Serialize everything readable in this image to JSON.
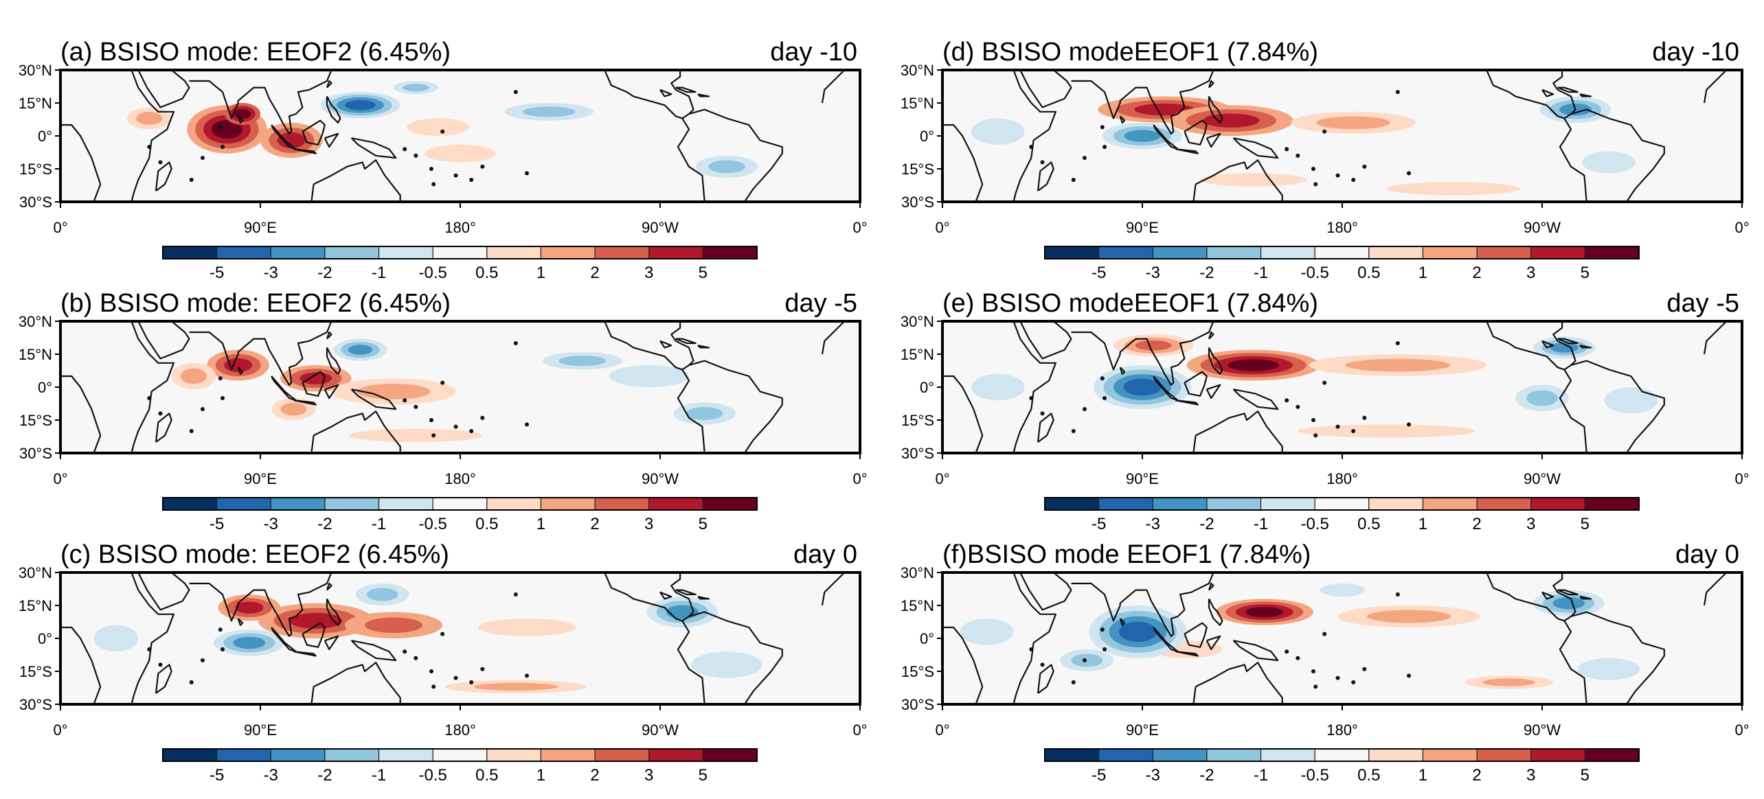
{
  "panels": [
    {
      "id": "a",
      "title": "(a) BSISO mode: EEOF2 (6.45%)",
      "day": "day -10",
      "mode": "EEOF2",
      "lag_days": -10
    },
    {
      "id": "b",
      "title": "(b) BSISO mode: EEOF2 (6.45%)",
      "day": "day -5",
      "mode": "EEOF2",
      "lag_days": -5
    },
    {
      "id": "c",
      "title": "(c) BSISO mode: EEOF2 (6.45%)",
      "day": "day 0",
      "mode": "EEOF2",
      "lag_days": 0
    },
    {
      "id": "d",
      "title": "(d) BSISO modeEEOF1 (7.84%)",
      "day": "day -10",
      "mode": "EEOF1",
      "lag_days": -10
    },
    {
      "id": "e",
      "title": "(e) BSISO modeEEOF1 (7.84%)",
      "day": "day -5",
      "mode": "EEOF1",
      "lag_days": -5
    },
    {
      "id": "f",
      "title": "(f)BSISO mode EEOF1 (7.84%)",
      "day": "day 0",
      "mode": "EEOF1",
      "lag_days": 0
    }
  ],
  "lat_labels": [
    "30°N",
    "15°N",
    "0°",
    "15°S",
    "30°S"
  ],
  "lon_labels": [
    "0°",
    "90°E",
    "180°",
    "90°W",
    "0°"
  ],
  "colorbar": {
    "labels": [
      "-5",
      "-3",
      "-2",
      "-1",
      "-0.5",
      "0.5",
      "1",
      "2",
      "3",
      "5"
    ],
    "colors": [
      "#053061",
      "#2166ac",
      "#4393c3",
      "#92c5de",
      "#d1e5f0",
      "#f7f7f7",
      "#fddbc7",
      "#f4a582",
      "#d6604d",
      "#b2182b",
      "#67001f"
    ]
  }
}
